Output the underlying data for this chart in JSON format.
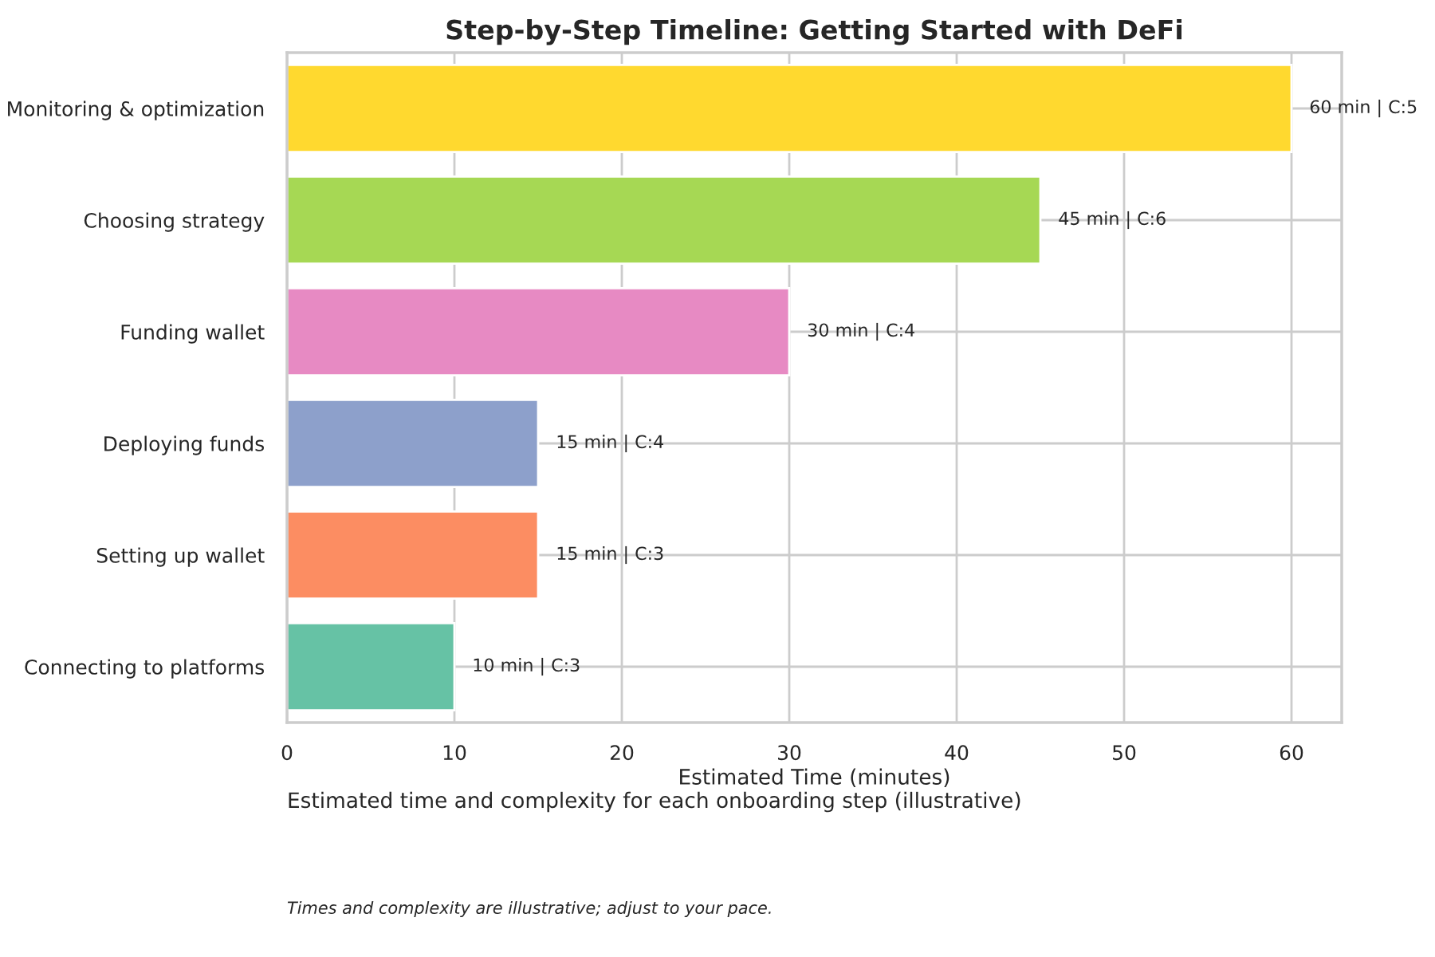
{
  "chart_data": {
    "type": "bar",
    "orientation": "horizontal",
    "title": "Step-by-Step Timeline: Getting Started with DeFi",
    "xlabel": "Estimated Time (minutes)",
    "categories": [
      "Monitoring & optimization",
      "Choosing strategy",
      "Funding wallet",
      "Deploying funds",
      "Setting up wallet",
      "Connecting to platforms"
    ],
    "values": [
      60,
      45,
      30,
      15,
      15,
      10
    ],
    "colors": [
      "#ffd92f",
      "#a6d854",
      "#e78ac3",
      "#8da0cb",
      "#fc8d62",
      "#66c2a5"
    ],
    "value_labels": [
      "60 min | C:5",
      "45 min | C:6",
      "30 min | C:4",
      "15 min | C:4",
      "15 min | C:3",
      "10 min | C:3"
    ],
    "xlim": [
      0,
      63
    ],
    "xticks": [
      0,
      10,
      20,
      30,
      40,
      50,
      60
    ],
    "grid": true,
    "legend": false,
    "annotations": [
      "Estimated time and complexity for each onboarding step (illustrative)",
      "Times and complexity are illustrative; adjust to your pace."
    ]
  }
}
